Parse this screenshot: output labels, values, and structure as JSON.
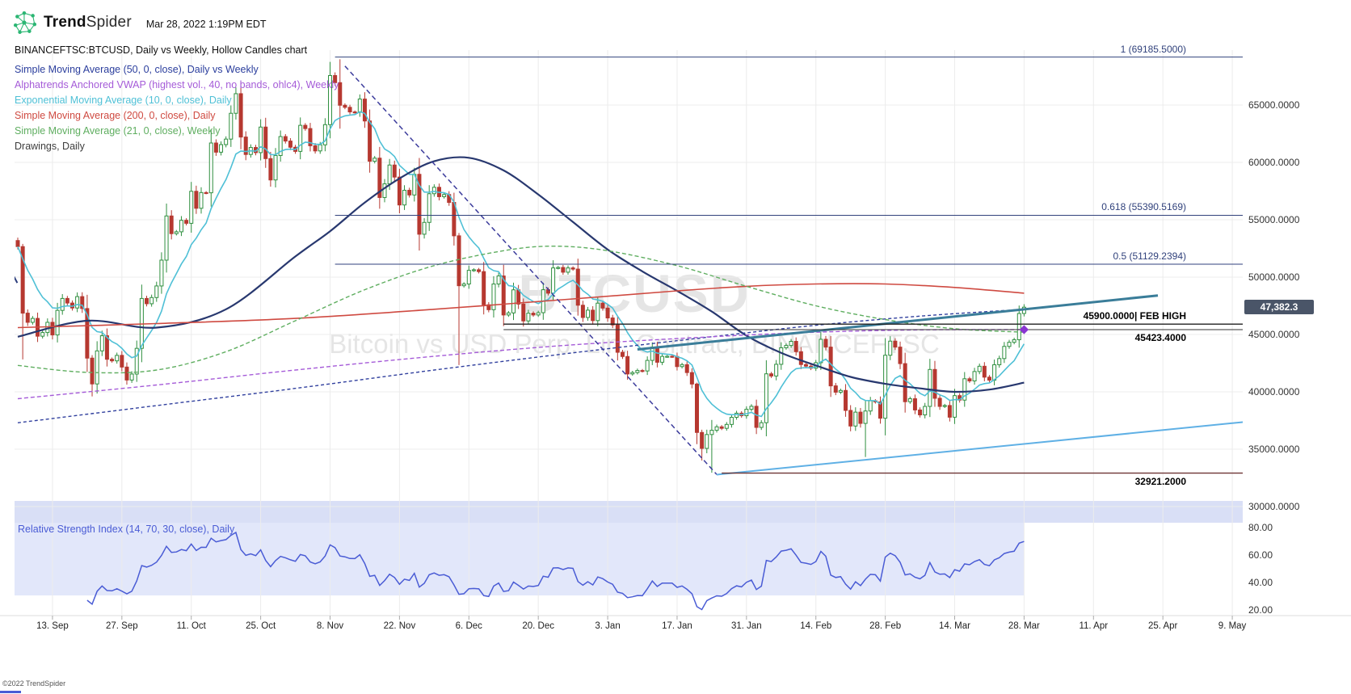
{
  "header": {
    "brand_bold": "Trend",
    "brand_light": "Spider",
    "datetime": "Mar 28, 2022 1:19PM EDT"
  },
  "icons": {
    "logo": "trendspider-network-icon"
  },
  "chart_title": "BINANCEFTSC:BTCUSD, Daily vs Weekly, Hollow Candles chart",
  "legend": [
    {
      "label": "Simple Moving Average (50, 0, close), Daily vs Weekly",
      "color": "#2b3e9d"
    },
    {
      "label": "Alphatrends Anchored VWAP (highest vol., 40, no bands, ohlc4), Weekly",
      "color": "#a55bd8"
    },
    {
      "label": "Exponential Moving Average (10, 0, close), Daily",
      "color": "#4fc0d6"
    },
    {
      "label": "Simple Moving Average (200, 0, close), Daily",
      "color": "#cf4a41"
    },
    {
      "label": "Simple Moving Average (21, 0, close), Weekly",
      "color": "#5fae60"
    },
    {
      "label": "Drawings, Daily",
      "color": "#3d3d3d"
    }
  ],
  "watermark": {
    "line1": "BTCUSD",
    "line2": "Bitcoin vs USD Perp. Lin. Contract, BINANCEFTSC"
  },
  "price_axis": [
    "65000.0000",
    "60000.0000",
    "55000.0000",
    "50000.0000",
    "45000.0000",
    "40000.0000",
    "35000.0000",
    "30000.0000"
  ],
  "price_badge": {
    "text": "47,382.3",
    "value": 47382.3,
    "color": "#4a5568"
  },
  "rsi_label": "Relative Strength Index (14, 70, 30, close), Daily",
  "rsi_axis": [
    "80.00",
    "60.00",
    "40.00",
    "20.00"
  ],
  "date_axis": [
    "13. Sep",
    "27. Sep",
    "11. Oct",
    "25. Oct",
    "8. Nov",
    "22. Nov",
    "6. Dec",
    "20. Dec",
    "3. Jan",
    "17. Jan",
    "31. Jan",
    "14. Feb",
    "28. Feb",
    "14. Mar",
    "28. Mar",
    "11. Apr",
    "25. Apr",
    "9. May"
  ],
  "copyright": "©2022 TrendSpider",
  "chart_data": {
    "type": "candlestick",
    "title": "BINANCEFTSC:BTCUSD, Daily vs Weekly, Hollow Candles chart",
    "symbol": "BINANCEFTSC:BTCUSD",
    "start_date": "2021-09-06",
    "x_unit": "day index from 2021-09-06",
    "last_price": 47382.3,
    "ylim": [
      29500,
      69500
    ],
    "y_ticks": [
      65000,
      60000,
      55000,
      50000,
      45000,
      40000,
      35000,
      30000
    ],
    "x_tick_days": [
      7,
      21,
      35,
      49,
      63,
      77,
      91,
      105,
      119,
      133,
      147,
      161,
      175,
      189,
      203,
      217,
      231,
      245
    ],
    "candle_colors": {
      "up": "#2f8f3f",
      "down": "#b63830"
    },
    "closes": [
      52660,
      46860,
      46060,
      46400,
      44850,
      45170,
      46060,
      44960,
      47100,
      48140,
      47740,
      47310,
      48300,
      47260,
      42940,
      40690,
      43570,
      44890,
      42840,
      42700,
      43180,
      42160,
      41030,
      41550,
      43790,
      48140,
      47680,
      48220,
      49230,
      51480,
      55330,
      53790,
      53950,
      54950,
      54690,
      57480,
      56000,
      57370,
      57350,
      61690,
      60890,
      61550,
      62030,
      64280,
      65990,
      62210,
      60690,
      61300,
      60850,
      63080,
      60330,
      58470,
      60600,
      62250,
      61860,
      61320,
      60960,
      63230,
      62950,
      61450,
      61000,
      61530,
      63290,
      67570,
      66950,
      64980,
      64800,
      64400,
      64380,
      65520,
      63610,
      60100,
      60370,
      56940,
      58130,
      59770,
      58720,
      56290,
      57570,
      57160,
      58960,
      53740,
      54770,
      57270,
      57830,
      57010,
      57200,
      56510,
      53600,
      49250,
      49400,
      50590,
      50640,
      50480,
      47590,
      47160,
      49400,
      50100,
      46700,
      46880,
      48890,
      47650,
      46180,
      46860,
      46700,
      46900,
      48900,
      48600,
      50800,
      50840,
      50430,
      50800,
      50700,
      47550,
      46480,
      47120,
      46210,
      47730,
      47300,
      46440,
      45830,
      43450,
      43080,
      41560,
      41680,
      41860,
      41820,
      42740,
      43900,
      42580,
      43090,
      43100,
      43080,
      42200,
      42370,
      41680,
      40680,
      36460,
      35070,
      36280,
      36650,
      36950,
      36820,
      37160,
      37780,
      38140,
      37920,
      38480,
      38740,
      36900,
      37310,
      41570,
      41380,
      42400,
      43840,
      44040,
      44400,
      43500,
      42380,
      42240,
      42060,
      42540,
      44580,
      43900,
      40520,
      39970,
      40120,
      38380,
      37020,
      38230,
      37250,
      38330,
      39220,
      39120,
      37700,
      43190,
      44420,
      43900,
      42460,
      39140,
      39400,
      38420,
      37990,
      38730,
      41950,
      39440,
      38730,
      38810,
      37790,
      39670,
      39280,
      41140,
      40950,
      41770,
      42230,
      41280,
      41020,
      42360,
      42900,
      43960,
      44320,
      44540,
      46830,
      47380
    ],
    "wicks": {
      "1": [
        52900,
        42830
      ],
      "15": [
        43200,
        39600
      ],
      "65": [
        68990,
        62940
      ],
      "89": [
        53850,
        42330
      ],
      "137": [
        40800,
        35440
      ],
      "138": [
        36700,
        34010
      ],
      "140": [
        37550,
        32950
      ],
      "171": [
        39280,
        34320
      ]
    },
    "ema": {
      "name": "Exponential Moving Average 10 Daily",
      "period": 10,
      "color": "#4fc0d6",
      "width": 1.6
    },
    "overlays": [
      {
        "name": "Simple Moving Average 50 Daily vs Weekly",
        "color": "#28386f",
        "width": 2.2,
        "dash": null,
        "points": [
          [
            0,
            44800
          ],
          [
            14,
            46200
          ],
          [
            28,
            45600
          ],
          [
            42,
            47200
          ],
          [
            56,
            51800
          ],
          [
            63,
            54000
          ],
          [
            70,
            56500
          ],
          [
            77,
            58600
          ],
          [
            84,
            60100
          ],
          [
            91,
            60400
          ],
          [
            98,
            59300
          ],
          [
            105,
            57200
          ],
          [
            112,
            54800
          ],
          [
            119,
            52400
          ],
          [
            126,
            50500
          ],
          [
            133,
            48800
          ],
          [
            140,
            47000
          ],
          [
            147,
            44900
          ],
          [
            154,
            43400
          ],
          [
            161,
            42300
          ],
          [
            168,
            41300
          ],
          [
            175,
            40700
          ],
          [
            182,
            40300
          ],
          [
            189,
            40000
          ],
          [
            196,
            40200
          ],
          [
            203,
            40800
          ]
        ]
      },
      {
        "name": "Simple Moving Average 50 Weekly",
        "color": "#31409e",
        "width": 1.4,
        "dash": "4,3",
        "points": [
          [
            0,
            37300
          ],
          [
            28,
            38800
          ],
          [
            56,
            40300
          ],
          [
            84,
            41900
          ],
          [
            112,
            43400
          ],
          [
            140,
            44800
          ],
          [
            161,
            45800
          ],
          [
            182,
            46600
          ],
          [
            203,
            47200
          ]
        ]
      },
      {
        "name": "Simple Moving Average 200 Daily",
        "color": "#cf4a41",
        "width": 1.6,
        "dash": null,
        "points": [
          [
            0,
            45600
          ],
          [
            28,
            45950
          ],
          [
            56,
            46400
          ],
          [
            84,
            47200
          ],
          [
            112,
            48100
          ],
          [
            133,
            48800
          ],
          [
            147,
            49200
          ],
          [
            161,
            49400
          ],
          [
            175,
            49400
          ],
          [
            189,
            49100
          ],
          [
            203,
            48600
          ]
        ]
      },
      {
        "name": "Simple Moving Average 21 Weekly",
        "color": "#5fae60",
        "width": 1.4,
        "dash": "5,3",
        "points": [
          [
            0,
            42300
          ],
          [
            14,
            41700
          ],
          [
            28,
            41900
          ],
          [
            42,
            43500
          ],
          [
            56,
            46200
          ],
          [
            70,
            48900
          ],
          [
            84,
            51000
          ],
          [
            98,
            52300
          ],
          [
            108,
            52700
          ],
          [
            119,
            52300
          ],
          [
            133,
            51000
          ],
          [
            147,
            49200
          ],
          [
            161,
            47500
          ],
          [
            175,
            46300
          ],
          [
            189,
            45500
          ],
          [
            203,
            45200
          ]
        ]
      },
      {
        "name": "Alphatrends Anchored VWAP Weekly",
        "color": "#a55bd8",
        "width": 1.4,
        "dash": "5,3",
        "points": [
          [
            0,
            39400
          ],
          [
            28,
            40600
          ],
          [
            56,
            41900
          ],
          [
            84,
            43100
          ],
          [
            112,
            44100
          ],
          [
            140,
            44800
          ],
          [
            161,
            45200
          ],
          [
            182,
            45400
          ],
          [
            203,
            45430
          ]
        ]
      }
    ],
    "trendlines": [
      {
        "name": "descending-trendline",
        "color": "#3c3c9c",
        "width": 1.5,
        "dash": "6,4",
        "points": [
          [
            66,
            68400
          ],
          [
            141,
            32800
          ]
        ]
      },
      {
        "name": "ascending-teal-trendline",
        "color": "#3a7d99",
        "width": 3,
        "dash": null,
        "points": [
          [
            125,
            43700
          ],
          [
            230,
            48400
          ]
        ]
      },
      {
        "name": "ascending-skyblue-trendline",
        "color": "#5fb0e5",
        "width": 2,
        "dash": null,
        "points": [
          [
            141,
            32780
          ],
          [
            248,
            37400
          ]
        ]
      },
      {
        "name": "vwap-anchor-chevron",
        "color": "#2c3e7d",
        "width": 2,
        "dash": null,
        "points": [
          [
            -2.3,
            49500
          ],
          [
            -1.2,
            50400
          ],
          [
            -0.1,
            49500
          ]
        ]
      }
    ],
    "hlines": [
      {
        "price": 69185.5,
        "from_day": 64,
        "color": "#31427c",
        "width": 1,
        "label": "1 (69185.5000)",
        "label_color": "#31427c",
        "label_bold": false,
        "label_pos": "above"
      },
      {
        "price": 55390.5169,
        "from_day": 64,
        "color": "#31427c",
        "width": 1,
        "label": "0.618 (55390.5169)",
        "label_color": "#31427c",
        "label_bold": false,
        "label_pos": "above"
      },
      {
        "price": 51129.2394,
        "from_day": 64,
        "color": "#31427c",
        "width": 1,
        "label": "0.5 (51129.2394)",
        "label_color": "#31427c",
        "label_bold": false,
        "label_pos": "above"
      },
      {
        "price": 45900,
        "from_day": 98,
        "color": "#1f1f1f",
        "width": 1.4,
        "label": "45900.0000| FEB HIGH",
        "label_color": "#000000",
        "label_bold": true,
        "label_pos": "above"
      },
      {
        "price": 45423.4,
        "from_day": 98,
        "color": "#333333",
        "width": 1,
        "label": "45423.4000",
        "label_color": "#000000",
        "label_bold": true,
        "label_pos": "below"
      },
      {
        "price": 32921.2,
        "from_day": 142,
        "color": "#6e3434",
        "width": 1.4,
        "label": "32921.2000",
        "label_color": "#000000",
        "label_bold": true,
        "label_pos": "below"
      }
    ],
    "marker": {
      "name": "diamond-marker",
      "day": 203,
      "price": 45423.4,
      "color": "#8a36d1"
    },
    "rsi": {
      "period": 14,
      "upper": 70,
      "lower": 30,
      "color": "#4a5cd5",
      "width": 1.5,
      "axis_ticks": [
        80,
        60,
        40,
        20
      ],
      "axis_range": [
        20,
        80
      ],
      "top_band_color": "#d9dff6",
      "zone_color": "#e2e7fa"
    },
    "grid": true,
    "legend_position": "top-left"
  }
}
